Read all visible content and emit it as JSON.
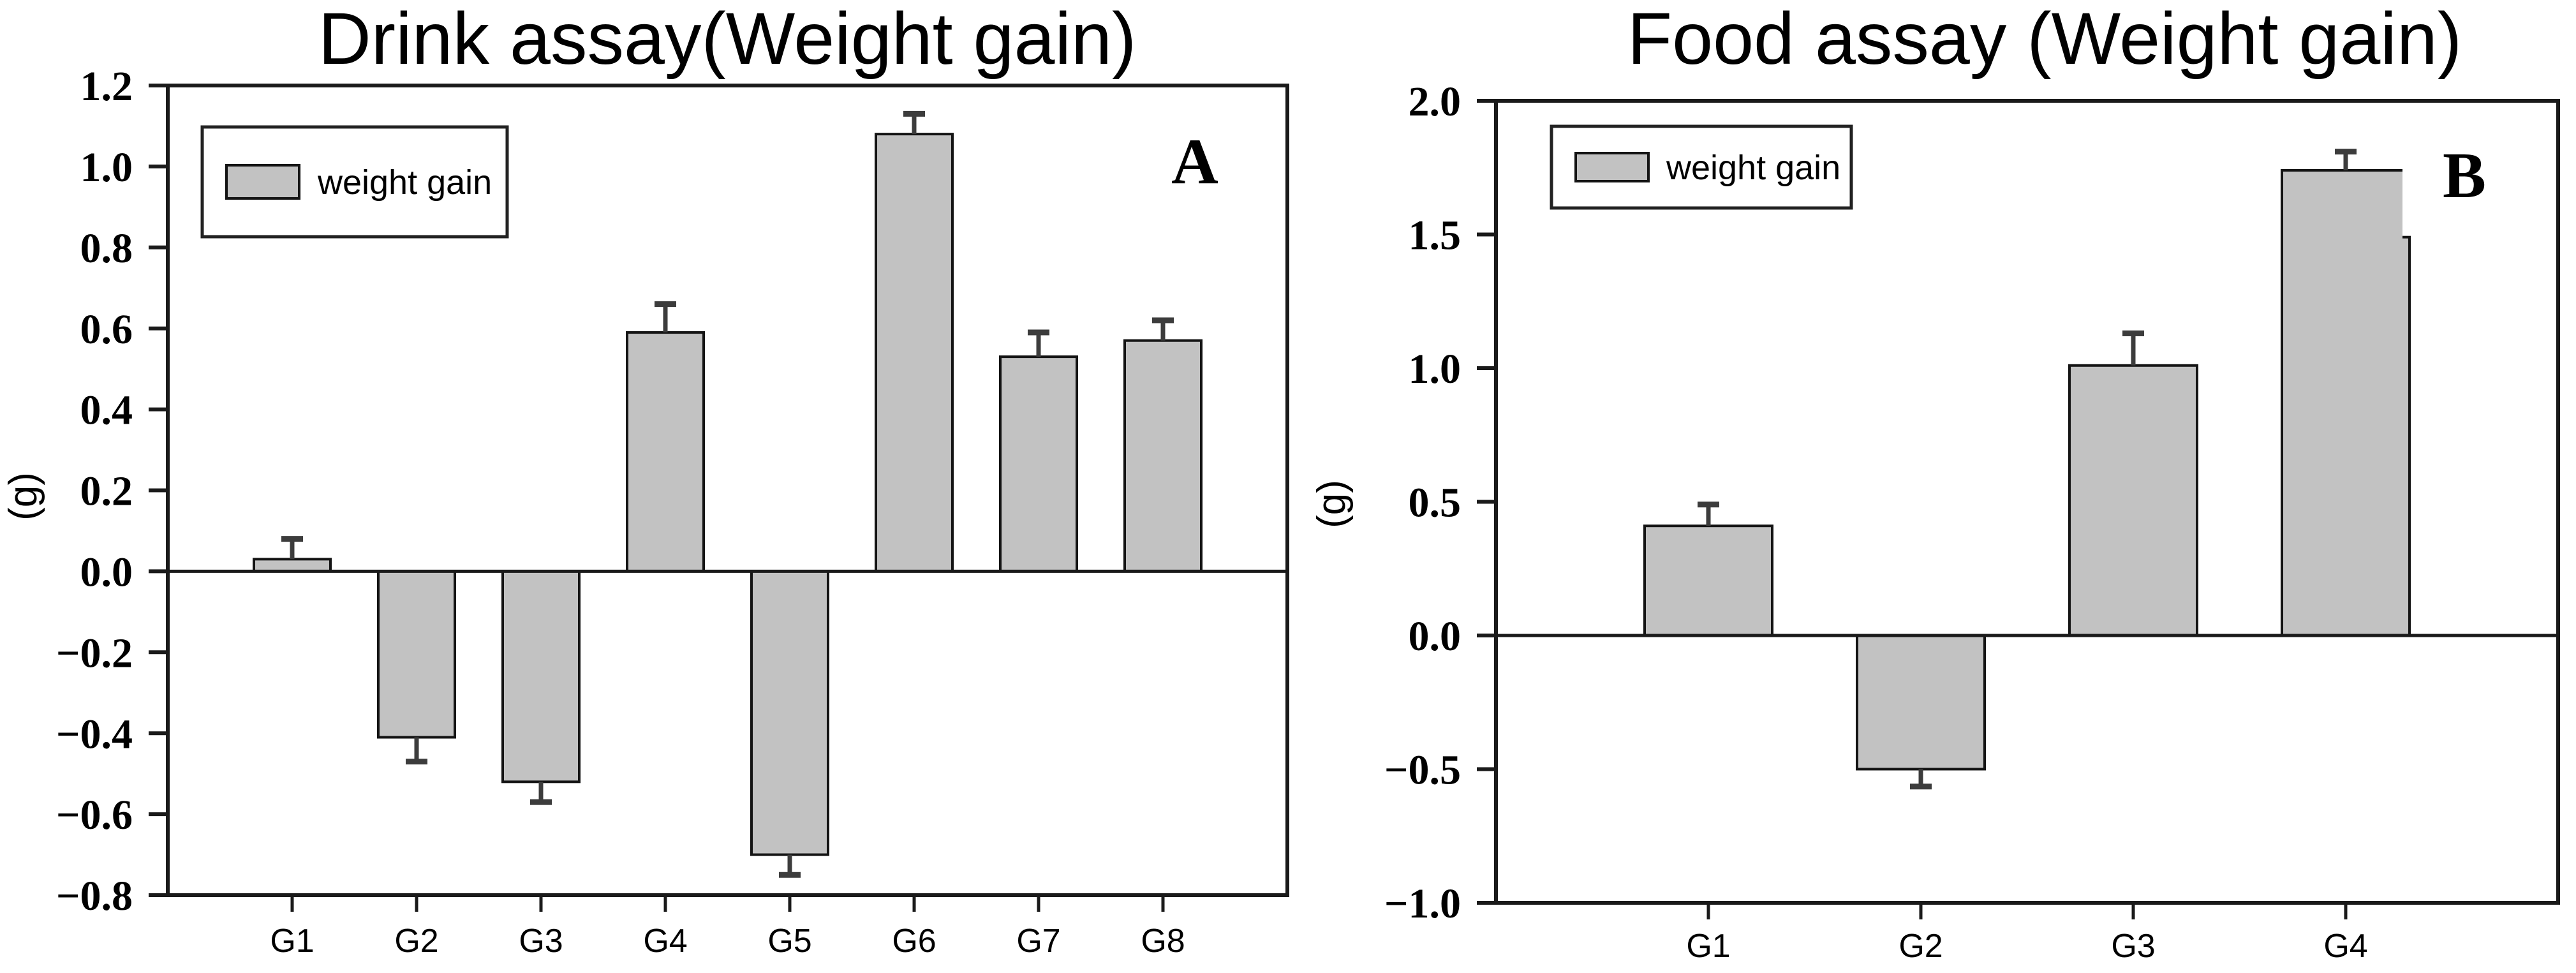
{
  "figure": {
    "background": "#ffffff"
  },
  "colors": {
    "bar_fill": "#c2c2c2",
    "bar_edge": "#141414",
    "error_bar": "#3c3c3c",
    "axis": "#1a1a1a",
    "text": "#000000",
    "legend_border": "#222222",
    "legend_fill": "#ffffff"
  },
  "chart_data": [
    {
      "type": "bar",
      "panel_label": "A",
      "title": "Drink assay(Weight gain)",
      "ylabel": "(g)",
      "xlabel": "",
      "legend": {
        "label": "weight gain",
        "position": "top-left"
      },
      "grid": false,
      "ylim": [
        -0.8,
        1.2
      ],
      "categories": [
        "G1",
        "G2",
        "G3",
        "G4",
        "G5",
        "G6",
        "G7",
        "G8"
      ],
      "series": [
        {
          "name": "weight gain",
          "values": [
            0.03,
            -0.41,
            -0.52,
            0.59,
            -0.7,
            1.08,
            0.53,
            0.57
          ],
          "errors": [
            0.05,
            0.06,
            0.05,
            0.07,
            0.05,
            0.05,
            0.06,
            0.05
          ]
        }
      ],
      "yticks": [
        {
          "value": 1.2,
          "label": "1.2"
        },
        {
          "value": 1.0,
          "label": "1.0"
        },
        {
          "value": 0.8,
          "label": "0.8"
        },
        {
          "value": 0.6,
          "label": "0.6"
        },
        {
          "value": 0.4,
          "label": "0.4"
        },
        {
          "value": 0.2,
          "label": "0.2"
        },
        {
          "value": 0.0,
          "label": "0.0"
        },
        {
          "value": -0.2,
          "label": "−0.2"
        },
        {
          "value": -0.4,
          "label": "−0.4"
        },
        {
          "value": -0.6,
          "label": "−0.6"
        },
        {
          "value": -0.8,
          "label": "−0.8"
        }
      ]
    },
    {
      "type": "bar",
      "panel_label": "B",
      "title": "Food assay (Weight gain)",
      "ylabel": "(g)",
      "xlabel": "",
      "legend": {
        "label": "weight gain",
        "position": "top-left"
      },
      "grid": false,
      "ylim": [
        -1.0,
        2.0
      ],
      "categories": [
        "G1",
        "G2",
        "G3",
        "G4"
      ],
      "series": [
        {
          "name": "weight gain",
          "values": [
            0.41,
            -0.5,
            1.01,
            1.74
          ],
          "errors": [
            0.08,
            0.065,
            0.12,
            0.07
          ]
        }
      ],
      "yticks": [
        {
          "value": 2.0,
          "label": "2.0"
        },
        {
          "value": 1.5,
          "label": "1.5"
        },
        {
          "value": 1.0,
          "label": "1.0"
        },
        {
          "value": 0.5,
          "label": "0.5"
        },
        {
          "value": 0.0,
          "label": "0.0"
        },
        {
          "value": -0.5,
          "label": "−0.5"
        },
        {
          "value": -1.0,
          "label": "−1.0"
        }
      ],
      "artifact_notch": {
        "category": "G4",
        "from_value": 1.74,
        "to_value": 1.49
      }
    }
  ]
}
